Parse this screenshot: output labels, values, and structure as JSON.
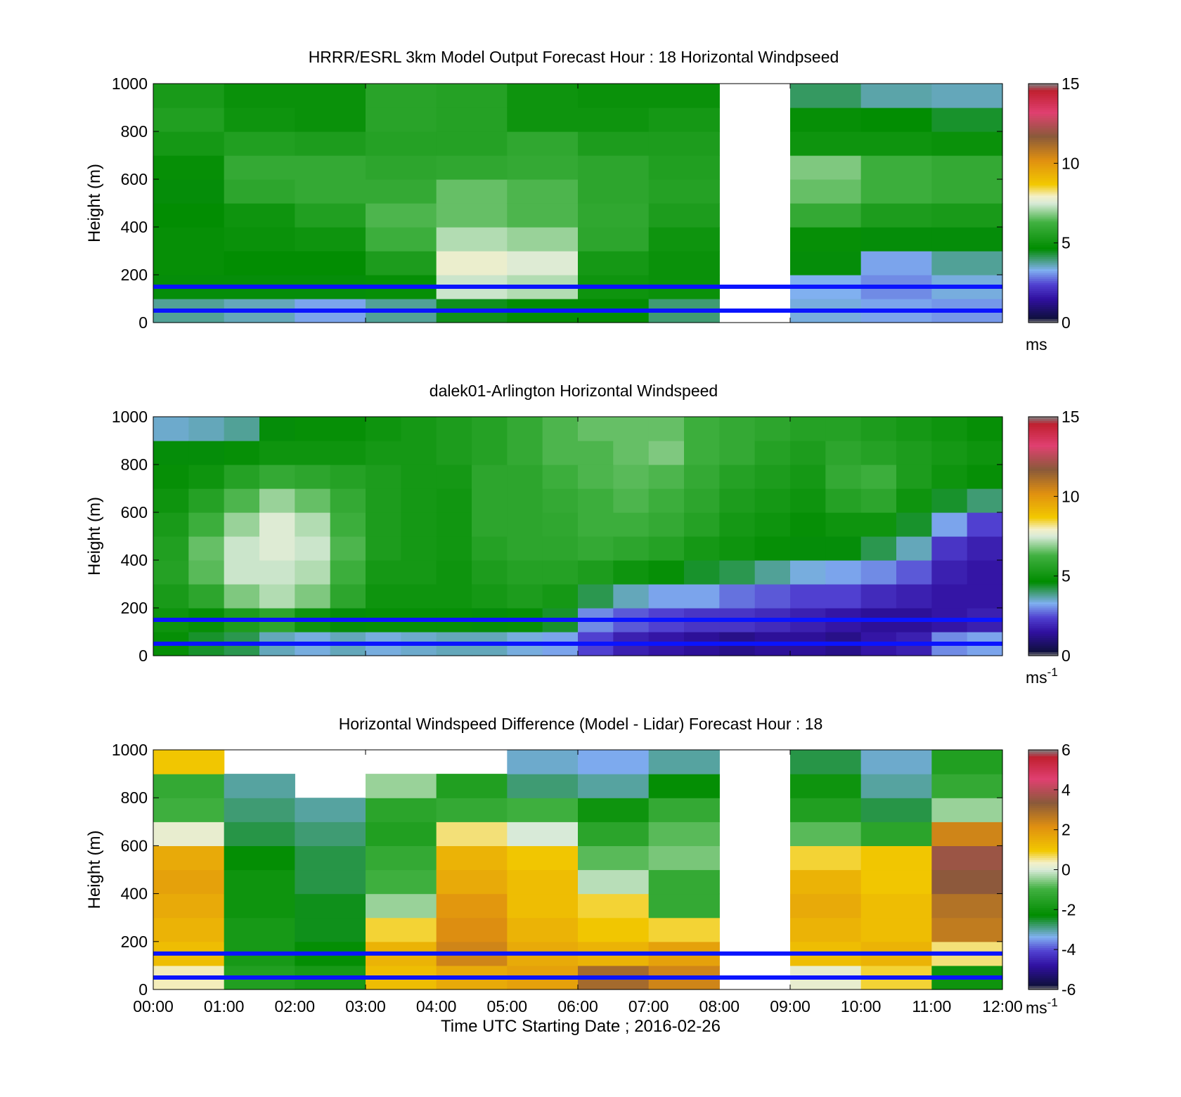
{
  "figure": {
    "xlabel": "Time UTC  Starting Date ; 2016-02-26",
    "x_ticks": [
      "00:00",
      "01:00",
      "02:00",
      "03:00",
      "04:00",
      "05:00",
      "06:00",
      "07:00",
      "08:00",
      "09:00",
      "10:00",
      "11:00",
      "12:00"
    ]
  },
  "chart_data": [
    {
      "type": "heatmap",
      "title": "HRRR/ESRL 3km Model Output   Forecast Hour : 18 Horizontal Windpseed",
      "ylabel": "Height (m)",
      "y_ticks": [
        "0",
        "200",
        "400",
        "600",
        "800",
        "1000"
      ],
      "ylim": [
        0,
        1000
      ],
      "xlim": [
        "00:00",
        "12:00"
      ],
      "colorbar": {
        "ticks": [
          "0",
          "5",
          "10",
          "15"
        ],
        "range": [
          0,
          15
        ],
        "unit": "ms",
        "unit_sup": ""
      },
      "reference_lines_m": [
        150,
        50
      ],
      "x": [
        "00:00",
        "01:00",
        "02:00",
        "03:00",
        "04:00",
        "05:00",
        "06:00",
        "07:00",
        "08:00",
        "09:00",
        "10:00",
        "11:00"
      ],
      "heights_m": [
        50,
        150,
        250,
        350,
        450,
        550,
        650,
        750,
        850,
        950
      ],
      "values": [
        [
          3.8,
          4.6,
          4.8,
          4.8,
          4.7,
          4.6,
          4.8,
          5.2,
          5.5,
          5.3
        ],
        [
          3.6,
          4.6,
          4.7,
          4.9,
          5.0,
          5.8,
          6.0,
          5.5,
          5.0,
          4.9
        ],
        [
          3.2,
          4.6,
          4.7,
          5.0,
          5.5,
          6.0,
          6.0,
          5.4,
          4.9,
          4.9
        ],
        [
          3.8,
          4.8,
          5.4,
          6.2,
          6.4,
          6.0,
          5.8,
          5.6,
          5.7,
          5.7
        ],
        [
          4.5,
          7.4,
          7.8,
          7.2,
          6.6,
          6.6,
          5.9,
          5.6,
          5.6,
          5.6
        ],
        [
          4.7,
          7.2,
          7.6,
          7.0,
          6.4,
          6.4,
          6.0,
          5.9,
          5.0,
          5.0
        ],
        [
          4.7,
          5.0,
          5.2,
          5.8,
          5.9,
          5.8,
          5.8,
          5.4,
          5.0,
          4.9
        ],
        [
          4.0,
          4.9,
          4.9,
          5.0,
          5.4,
          5.6,
          5.5,
          5.4,
          5.2,
          4.9
        ],
        [
          null,
          null,
          null,
          null,
          null,
          null,
          null,
          null,
          null,
          null
        ],
        [
          3.4,
          3.3,
          4.6,
          4.8,
          6.0,
          6.6,
          6.8,
          5.0,
          4.8,
          4.1
        ],
        [
          3.2,
          3.0,
          3.2,
          4.6,
          5.4,
          6.2,
          6.2,
          5.0,
          4.7,
          3.7
        ],
        [
          3.1,
          3.4,
          3.8,
          4.6,
          5.3,
          6.0,
          6.0,
          4.9,
          4.4,
          3.6
        ]
      ]
    },
    {
      "type": "heatmap",
      "title": "dalek01-Arlington  Horizontal Windspeed",
      "ylabel": "Height (m)",
      "y_ticks": [
        "0",
        "200",
        "400",
        "600",
        "800",
        "1000"
      ],
      "ylim": [
        0,
        1000
      ],
      "xlim": [
        "00:00",
        "12:00"
      ],
      "colorbar": {
        "ticks": [
          "0",
          "5",
          "10",
          "15"
        ],
        "range": [
          0,
          15
        ],
        "unit": "ms",
        "unit_sup": "-1"
      },
      "reference_lines_m": [
        150,
        50
      ],
      "x": [
        "00:00",
        "00:30",
        "01:00",
        "01:30",
        "02:00",
        "02:30",
        "03:00",
        "03:30",
        "04:00",
        "04:30",
        "05:00",
        "05:30",
        "06:00",
        "06:30",
        "07:00",
        "07:30",
        "08:00",
        "08:30",
        "09:00",
        "09:30",
        "10:00",
        "10:30",
        "11:00",
        "11:30"
      ],
      "heights_m": [
        50,
        150,
        250,
        350,
        450,
        550,
        650,
        750,
        850,
        950
      ],
      "values": [
        [
          4.8,
          5.0,
          5.3,
          5.6,
          5.5,
          5.3,
          5.0,
          4.8,
          4.6,
          3.5
        ],
        [
          4.4,
          4.8,
          5.8,
          6.5,
          6.6,
          6.2,
          5.6,
          5.0,
          4.6,
          3.6
        ],
        [
          4.2,
          5.4,
          6.8,
          7.4,
          7.4,
          7.0,
          6.4,
          5.6,
          4.8,
          3.8
        ],
        [
          3.6,
          5.8,
          7.2,
          7.4,
          7.6,
          7.6,
          7.0,
          6.0,
          5.0,
          4.6
        ],
        [
          3.4,
          5.0,
          6.8,
          7.2,
          7.4,
          7.2,
          6.6,
          5.8,
          5.0,
          4.8
        ],
        [
          3.6,
          4.6,
          5.8,
          6.2,
          6.4,
          6.2,
          6.0,
          5.6,
          5.0,
          4.8
        ],
        [
          3.4,
          4.8,
          5.0,
          5.2,
          5.4,
          5.4,
          5.4,
          5.4,
          5.2,
          5.0
        ],
        [
          3.5,
          4.8,
          5.0,
          5.2,
          5.2,
          5.2,
          5.2,
          5.2,
          5.2,
          5.2
        ],
        [
          3.6,
          4.8,
          5.0,
          5.0,
          5.1,
          5.1,
          5.1,
          5.2,
          5.4,
          5.4
        ],
        [
          3.6,
          4.6,
          5.2,
          5.4,
          5.6,
          5.8,
          5.8,
          5.8,
          5.6,
          5.6
        ],
        [
          3.4,
          4.8,
          5.4,
          5.6,
          5.8,
          5.8,
          5.8,
          5.8,
          6.0,
          6.0
        ],
        [
          3.2,
          4.4,
          5.2,
          5.6,
          5.8,
          5.9,
          6.0,
          6.2,
          6.4,
          6.4
        ],
        [
          2.4,
          3.0,
          4.2,
          5.4,
          6.0,
          6.2,
          6.2,
          6.4,
          6.4,
          6.6
        ],
        [
          1.8,
          2.6,
          3.6,
          5.0,
          5.8,
          6.2,
          6.4,
          6.5,
          6.6,
          6.6
        ],
        [
          1.6,
          2.4,
          3.2,
          4.8,
          5.6,
          6.0,
          6.2,
          6.4,
          6.8,
          6.6
        ],
        [
          1.4,
          2.2,
          3.2,
          4.4,
          5.2,
          5.6,
          5.8,
          6.0,
          6.2,
          6.2
        ],
        [
          1.2,
          2.2,
          2.8,
          4.2,
          5.0,
          5.2,
          5.4,
          5.6,
          6.0,
          6.0
        ],
        [
          1.4,
          2.0,
          2.6,
          3.8,
          4.8,
          5.0,
          5.2,
          5.4,
          5.6,
          5.8
        ],
        [
          1.4,
          1.8,
          2.4,
          3.4,
          4.6,
          4.8,
          5.0,
          5.2,
          5.4,
          5.6
        ],
        [
          1.2,
          1.6,
          2.4,
          3.2,
          4.6,
          5.0,
          5.6,
          6.0,
          5.8,
          5.6
        ],
        [
          1.6,
          1.4,
          2.0,
          3.0,
          4.2,
          5.0,
          5.8,
          6.2,
          5.6,
          5.4
        ],
        [
          1.8,
          1.4,
          1.8,
          2.6,
          3.6,
          4.4,
          5.0,
          5.4,
          5.4,
          5.2
        ],
        [
          3.0,
          1.6,
          1.6,
          1.8,
          2.2,
          3.2,
          4.4,
          5.0,
          5.2,
          5.0
        ],
        [
          3.2,
          1.8,
          1.6,
          1.6,
          1.8,
          2.4,
          4.0,
          4.8,
          5.0,
          4.8
        ]
      ]
    },
    {
      "type": "heatmap",
      "title": "Horizontal Windspeed Difference (Model - Lidar) Forecast Hour : 18",
      "ylabel": "Height (m)",
      "y_ticks": [
        "0",
        "200",
        "400",
        "600",
        "800",
        "1000"
      ],
      "ylim": [
        0,
        1000
      ],
      "xlim": [
        "00:00",
        "12:00"
      ],
      "colorbar": {
        "ticks": [
          "-6",
          "-4",
          "-2",
          "0",
          "2",
          "4",
          "6"
        ],
        "range": [
          -6,
          6
        ],
        "unit": "ms",
        "unit_sup": "-1"
      },
      "reference_lines_m": [
        150,
        50
      ],
      "x": [
        "00:00",
        "01:00",
        "02:00",
        "03:00",
        "04:00",
        "05:00",
        "06:00",
        "07:00",
        "08:00",
        "09:00",
        "10:00",
        "11:00"
      ],
      "heights_m": [
        50,
        150,
        250,
        350,
        450,
        550,
        650,
        750,
        850,
        950
      ],
      "values": [
        [
          0.4,
          1.2,
          1.4,
          1.6,
          1.8,
          1.6,
          0.2,
          -1.0,
          -1.2,
          1.0
        ],
        [
          -1.6,
          -1.8,
          -1.8,
          -2.0,
          -2.0,
          -2.2,
          -2.6,
          -2.8,
          -3.0,
          null
        ],
        [
          -1.8,
          -2.2,
          -2.4,
          -2.4,
          -2.6,
          -2.6,
          -2.8,
          -3.0,
          null,
          null
        ],
        [
          1.2,
          1.4,
          0.8,
          -0.4,
          -1.0,
          -1.2,
          -1.6,
          -1.4,
          -0.4,
          null
        ],
        [
          1.6,
          2.4,
          2.2,
          2.0,
          1.6,
          1.4,
          0.6,
          -1.2,
          -1.6,
          null
        ],
        [
          1.8,
          1.6,
          1.4,
          1.2,
          1.2,
          1.0,
          0.0,
          -1.0,
          -2.8,
          -3.2
        ],
        [
          3.0,
          1.4,
          1.0,
          0.8,
          -0.2,
          -0.8,
          -1.4,
          -2.0,
          -3.0,
          -3.4
        ],
        [
          2.4,
          1.8,
          0.8,
          -1.2,
          -1.2,
          -0.6,
          -0.8,
          -1.2,
          -2.2,
          -3.0
        ],
        [
          null,
          null,
          null,
          null,
          null,
          null,
          null,
          null,
          null,
          null
        ],
        [
          0.2,
          1.2,
          1.4,
          1.6,
          1.4,
          0.8,
          -0.8,
          -1.6,
          -2.0,
          -2.6
        ],
        [
          0.8,
          1.4,
          1.2,
          1.2,
          1.0,
          1.0,
          -1.4,
          -2.6,
          -3.0,
          -3.2
        ],
        [
          -2.0,
          0.6,
          2.6,
          2.8,
          3.4,
          3.6,
          2.4,
          -0.4,
          -1.2,
          -1.6
        ]
      ]
    }
  ]
}
